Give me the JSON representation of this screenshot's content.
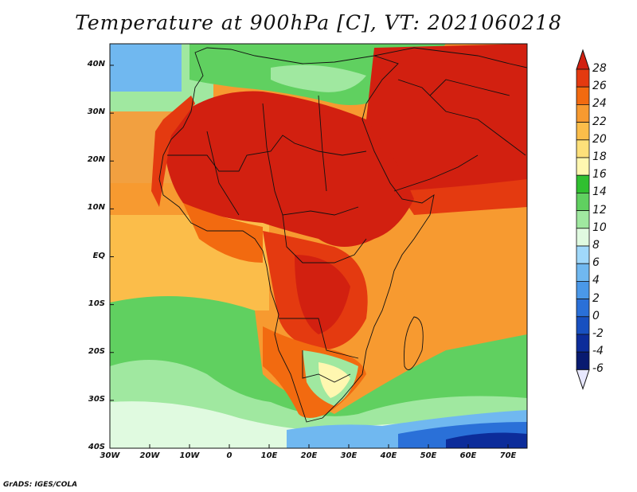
{
  "title": "Temperature at 900hPa [C], VT: 2021060218",
  "map": {
    "lon_range": [
      -30,
      75
    ],
    "lat_range": [
      -40,
      45
    ],
    "lat_ticks": [
      "40N",
      "30N",
      "20N",
      "10N",
      "EQ",
      "10S",
      "20S",
      "30S",
      "40S"
    ],
    "lon_ticks": [
      "30W",
      "20W",
      "10W",
      "0",
      "10E",
      "20E",
      "30E",
      "40E",
      "50E",
      "60E",
      "70E"
    ]
  },
  "colorbar": {
    "levels": [
      "28",
      "26",
      "24",
      "22",
      "20",
      "18",
      "16",
      "14",
      "12",
      "10",
      "8",
      "6",
      "4",
      "2",
      "0",
      "-2",
      "-4",
      "-6"
    ],
    "colors": [
      "#d22010",
      "#e43a10",
      "#f26a10",
      "#f79a30",
      "#fbbd4a",
      "#fde07a",
      "#fff7b0",
      "#30c030",
      "#60d060",
      "#a0e8a0",
      "#e0fae0",
      "#a0d8fa",
      "#70b8f0",
      "#4a98e8",
      "#2a70d8",
      "#1850c0",
      "#0c2c9a",
      "#081a70",
      "#e8e8ff"
    ]
  },
  "credit": "GrADS: IGES/COLA"
}
